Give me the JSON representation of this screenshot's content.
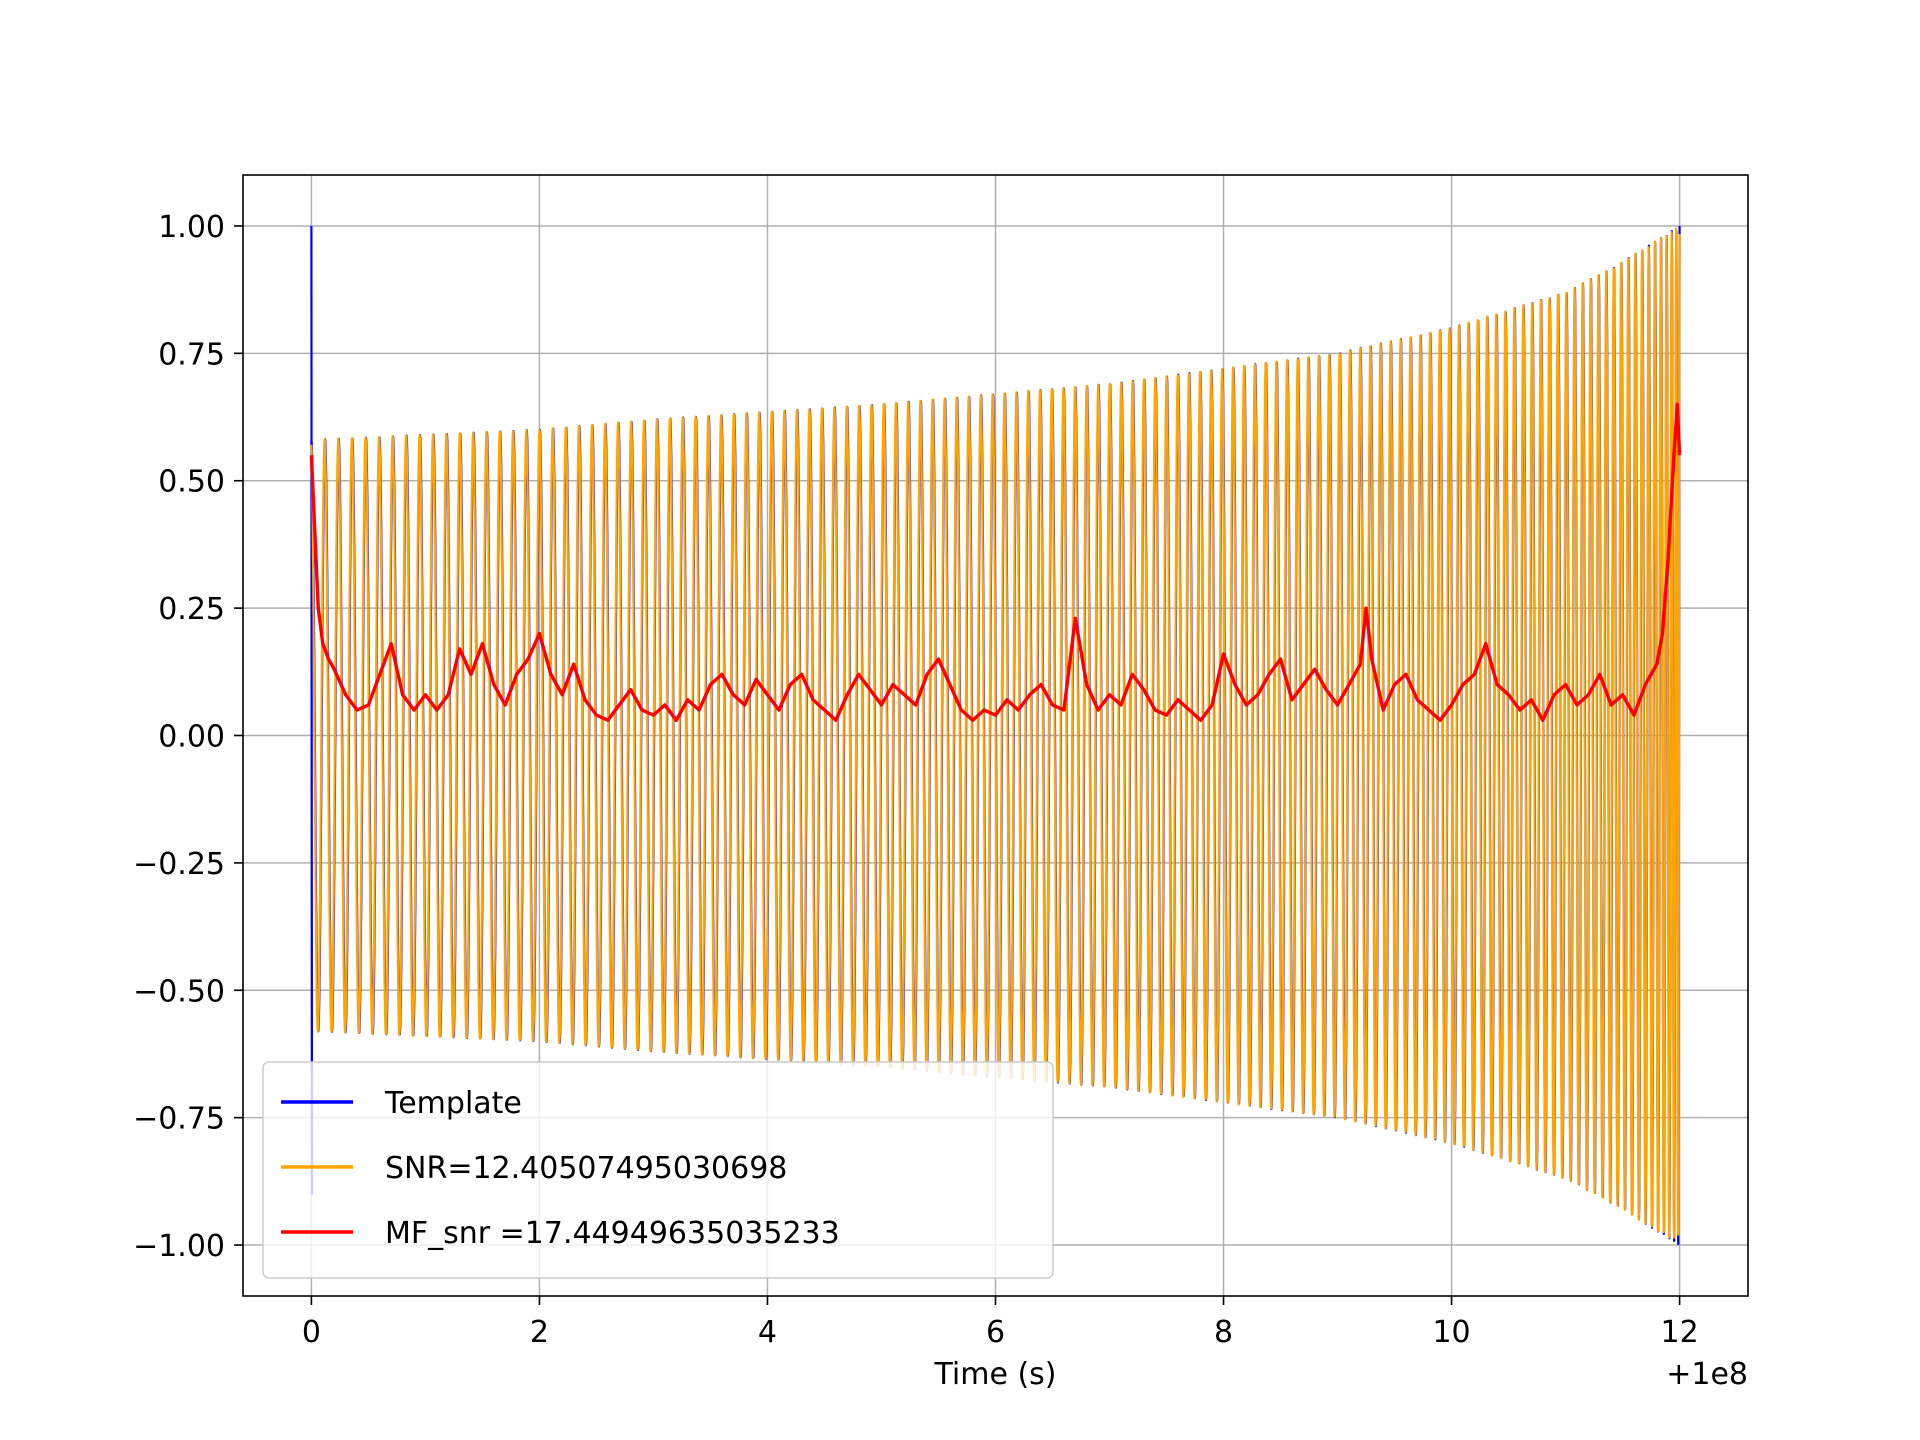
{
  "chart_data": {
    "type": "line",
    "xlabel": "Time (s)",
    "ylabel": "",
    "x_offset_label": "+1e8",
    "xlim": [
      -0.6,
      12.6
    ],
    "ylim": [
      -1.1,
      1.1
    ],
    "x_ticks": [
      0,
      2,
      4,
      6,
      8,
      10,
      12
    ],
    "x_tick_labels": [
      "0",
      "2",
      "4",
      "6",
      "8",
      "10",
      "12"
    ],
    "y_ticks": [
      1.0,
      0.75,
      0.5,
      0.25,
      0.0,
      -0.25,
      -0.5,
      -0.75,
      -1.0
    ],
    "y_tick_labels": [
      "1.00",
      "0.75",
      "0.50",
      "0.25",
      "0.00",
      "−0.25",
      "−0.50",
      "−0.75",
      "−1.00"
    ],
    "grid": true,
    "legend_position": "lower-left",
    "series": [
      {
        "name": "Template",
        "color": "#0000ff",
        "style": "chirp",
        "t_start": 0.0,
        "t_end": 12.0,
        "cycles": 125,
        "phase_shift": 0.0,
        "envelope": [
          [
            0.0,
            0.58
          ],
          [
            1.0,
            0.59
          ],
          [
            2.0,
            0.6
          ],
          [
            3.0,
            0.62
          ],
          [
            4.0,
            0.635
          ],
          [
            5.0,
            0.65
          ],
          [
            6.0,
            0.67
          ],
          [
            7.0,
            0.69
          ],
          [
            8.0,
            0.72
          ],
          [
            9.0,
            0.75
          ],
          [
            10.0,
            0.8
          ],
          [
            11.0,
            0.87
          ],
          [
            11.5,
            0.93
          ],
          [
            12.0,
            1.0
          ]
        ],
        "start_spike": 1.0
      },
      {
        "name": "SNR=12.40507495030698",
        "color": "#ffa500",
        "style": "chirp",
        "t_start": 0.0,
        "t_end": 12.0,
        "cycles": 125,
        "phase_shift": 0.18,
        "envelope": [
          [
            0.0,
            0.58
          ],
          [
            1.0,
            0.59
          ],
          [
            2.0,
            0.6
          ],
          [
            3.0,
            0.62
          ],
          [
            4.0,
            0.635
          ],
          [
            5.0,
            0.65
          ],
          [
            6.0,
            0.67
          ],
          [
            7.0,
            0.69
          ],
          [
            8.0,
            0.72
          ],
          [
            9.0,
            0.75
          ],
          [
            10.0,
            0.8
          ],
          [
            11.0,
            0.87
          ],
          [
            11.5,
            0.93
          ],
          [
            12.0,
            1.0
          ]
        ]
      },
      {
        "name": "MF_snr =17.44949635035233",
        "color": "#ff0000",
        "style": "line",
        "points": [
          [
            0.0,
            0.55
          ],
          [
            0.03,
            0.4
          ],
          [
            0.06,
            0.25
          ],
          [
            0.1,
            0.18
          ],
          [
            0.15,
            0.15
          ],
          [
            0.2,
            0.13
          ],
          [
            0.3,
            0.08
          ],
          [
            0.4,
            0.05
          ],
          [
            0.5,
            0.06
          ],
          [
            0.6,
            0.12
          ],
          [
            0.7,
            0.18
          ],
          [
            0.8,
            0.08
          ],
          [
            0.9,
            0.05
          ],
          [
            1.0,
            0.08
          ],
          [
            1.1,
            0.05
          ],
          [
            1.2,
            0.08
          ],
          [
            1.3,
            0.17
          ],
          [
            1.4,
            0.12
          ],
          [
            1.5,
            0.18
          ],
          [
            1.6,
            0.1
          ],
          [
            1.7,
            0.06
          ],
          [
            1.8,
            0.12
          ],
          [
            1.9,
            0.15
          ],
          [
            2.0,
            0.2
          ],
          [
            2.1,
            0.12
          ],
          [
            2.2,
            0.08
          ],
          [
            2.3,
            0.14
          ],
          [
            2.4,
            0.07
          ],
          [
            2.5,
            0.04
          ],
          [
            2.6,
            0.03
          ],
          [
            2.7,
            0.06
          ],
          [
            2.8,
            0.09
          ],
          [
            2.9,
            0.05
          ],
          [
            3.0,
            0.04
          ],
          [
            3.1,
            0.06
          ],
          [
            3.2,
            0.03
          ],
          [
            3.3,
            0.07
          ],
          [
            3.4,
            0.05
          ],
          [
            3.5,
            0.1
          ],
          [
            3.6,
            0.12
          ],
          [
            3.7,
            0.08
          ],
          [
            3.8,
            0.06
          ],
          [
            3.9,
            0.11
          ],
          [
            4.0,
            0.08
          ],
          [
            4.1,
            0.05
          ],
          [
            4.2,
            0.1
          ],
          [
            4.3,
            0.12
          ],
          [
            4.4,
            0.07
          ],
          [
            4.5,
            0.05
          ],
          [
            4.6,
            0.03
          ],
          [
            4.7,
            0.08
          ],
          [
            4.8,
            0.12
          ],
          [
            4.9,
            0.09
          ],
          [
            5.0,
            0.06
          ],
          [
            5.1,
            0.1
          ],
          [
            5.2,
            0.08
          ],
          [
            5.3,
            0.06
          ],
          [
            5.4,
            0.12
          ],
          [
            5.5,
            0.15
          ],
          [
            5.6,
            0.1
          ],
          [
            5.7,
            0.05
          ],
          [
            5.8,
            0.03
          ],
          [
            5.9,
            0.05
          ],
          [
            6.0,
            0.04
          ],
          [
            6.1,
            0.07
          ],
          [
            6.2,
            0.05
          ],
          [
            6.3,
            0.08
          ],
          [
            6.4,
            0.1
          ],
          [
            6.5,
            0.06
          ],
          [
            6.6,
            0.05
          ],
          [
            6.7,
            0.23
          ],
          [
            6.8,
            0.1
          ],
          [
            6.9,
            0.05
          ],
          [
            7.0,
            0.08
          ],
          [
            7.1,
            0.06
          ],
          [
            7.2,
            0.12
          ],
          [
            7.3,
            0.09
          ],
          [
            7.4,
            0.05
          ],
          [
            7.5,
            0.04
          ],
          [
            7.6,
            0.07
          ],
          [
            7.7,
            0.05
          ],
          [
            7.8,
            0.03
          ],
          [
            7.9,
            0.06
          ],
          [
            8.0,
            0.16
          ],
          [
            8.1,
            0.1
          ],
          [
            8.2,
            0.06
          ],
          [
            8.3,
            0.08
          ],
          [
            8.4,
            0.12
          ],
          [
            8.5,
            0.15
          ],
          [
            8.6,
            0.07
          ],
          [
            8.7,
            0.1
          ],
          [
            8.8,
            0.13
          ],
          [
            8.9,
            0.09
          ],
          [
            9.0,
            0.06
          ],
          [
            9.1,
            0.1
          ],
          [
            9.2,
            0.14
          ],
          [
            9.25,
            0.25
          ],
          [
            9.3,
            0.15
          ],
          [
            9.4,
            0.05
          ],
          [
            9.5,
            0.1
          ],
          [
            9.6,
            0.12
          ],
          [
            9.7,
            0.07
          ],
          [
            9.8,
            0.05
          ],
          [
            9.9,
            0.03
          ],
          [
            10.0,
            0.06
          ],
          [
            10.1,
            0.1
          ],
          [
            10.2,
            0.12
          ],
          [
            10.3,
            0.18
          ],
          [
            10.4,
            0.1
          ],
          [
            10.5,
            0.08
          ],
          [
            10.6,
            0.05
          ],
          [
            10.7,
            0.07
          ],
          [
            10.8,
            0.03
          ],
          [
            10.9,
            0.08
          ],
          [
            11.0,
            0.1
          ],
          [
            11.1,
            0.06
          ],
          [
            11.2,
            0.08
          ],
          [
            11.3,
            0.12
          ],
          [
            11.4,
            0.06
          ],
          [
            11.5,
            0.08
          ],
          [
            11.6,
            0.04
          ],
          [
            11.7,
            0.1
          ],
          [
            11.8,
            0.14
          ],
          [
            11.85,
            0.2
          ],
          [
            11.9,
            0.35
          ],
          [
            11.95,
            0.55
          ],
          [
            11.98,
            0.65
          ],
          [
            12.0,
            0.55
          ]
        ]
      }
    ]
  }
}
